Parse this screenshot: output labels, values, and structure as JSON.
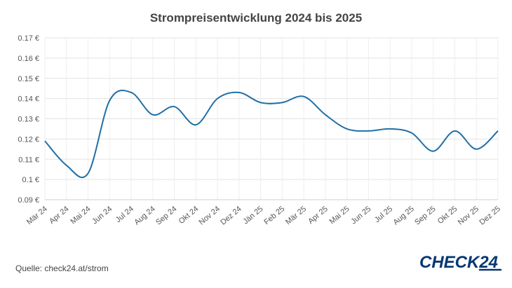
{
  "chart_data": {
    "type": "line",
    "title": "Strompreisentwicklung 2024 bis 2025",
    "xlabel": "",
    "ylabel": "",
    "categories": [
      "Mär 24",
      "Apr 24",
      "Mai 24",
      "Jun 24",
      "Jul 24",
      "Aug 24",
      "Sep 24",
      "Okt 24",
      "Nov 24",
      "Dez 24",
      "Jän 25",
      "Feb 25",
      "Mär 25",
      "Apr 25",
      "Mai 25",
      "Jun 25",
      "Jul 25",
      "Aug 25",
      "Sep 25",
      "Okt 25",
      "Nov 25",
      "Dez 25"
    ],
    "series": [
      {
        "values": [
          0.119,
          0.107,
          0.103,
          0.139,
          0.143,
          0.132,
          0.136,
          0.127,
          0.14,
          0.143,
          0.138,
          0.138,
          0.141,
          0.132,
          0.125,
          0.124,
          0.125,
          0.123,
          0.114,
          0.124,
          0.115,
          0.124
        ]
      }
    ],
    "yticks": [
      "0.09 €",
      "0.1 €",
      "0.11 €",
      "0.12 €",
      "0.13 €",
      "0.14 €",
      "0.15 €",
      "0.16 €",
      "0.17 €"
    ],
    "ylim": [
      0.09,
      0.17
    ],
    "grid": true,
    "line_color": "#1f6fa8"
  },
  "source": "Quelle: check24.at/strom",
  "brand": {
    "name": "CHECK24",
    "color": "#063773"
  }
}
